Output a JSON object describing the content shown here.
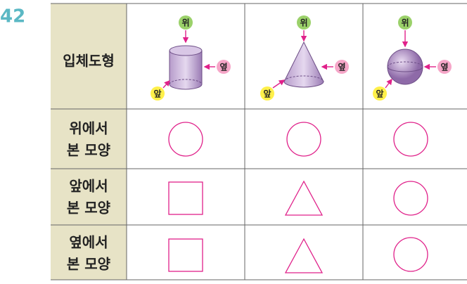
{
  "problem_number": "42",
  "table": {
    "rows": [
      {
        "header": [
          "입체도형"
        ],
        "figures": [
          {
            "top": "위",
            "side": "옆",
            "front": "앞"
          },
          {
            "top": "위",
            "side": "옆",
            "front": "앞"
          },
          {
            "top": "위",
            "side": "옆",
            "front": "앞"
          }
        ]
      },
      {
        "header": [
          "위에서",
          "본 모양"
        ]
      },
      {
        "header": [
          "앞에서",
          "본 모양"
        ]
      },
      {
        "header": [
          "옆에서",
          "본 모양"
        ]
      }
    ]
  }
}
